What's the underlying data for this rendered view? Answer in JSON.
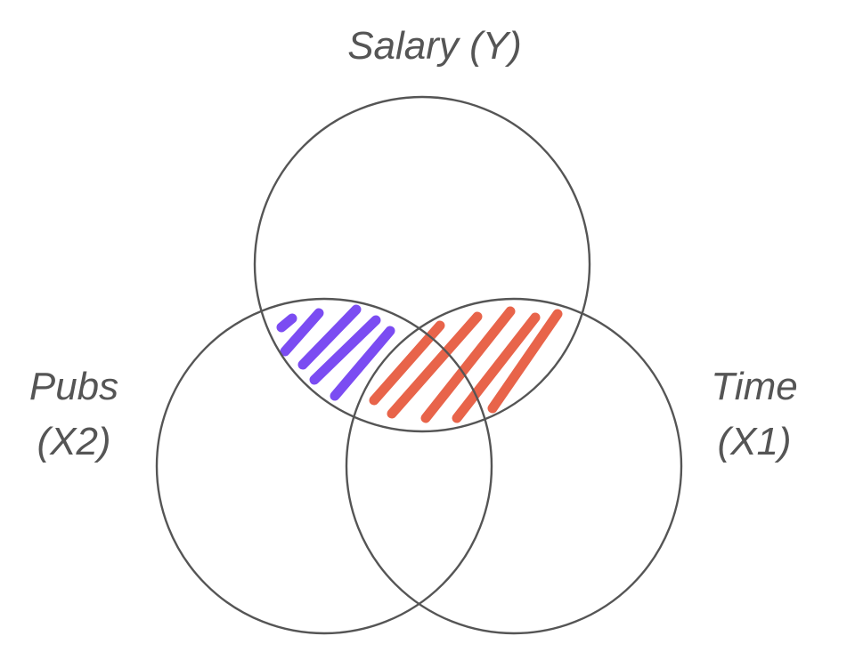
{
  "diagram": {
    "sets": [
      {
        "id": "salary",
        "label": "Salary (Y)"
      },
      {
        "id": "pubs",
        "label_line1": "Pubs",
        "label_line2": "(X2)"
      },
      {
        "id": "time",
        "label_line1": "Time",
        "label_line2": "(X1)"
      }
    ],
    "hatched_regions": [
      {
        "between": [
          "salary",
          "pubs"
        ],
        "color": "#7b4cf2"
      },
      {
        "between": [
          "salary",
          "time"
        ],
        "color": "#e8644a"
      }
    ],
    "colors": {
      "circle_stroke": "#555555",
      "label_text": "#555555"
    }
  }
}
